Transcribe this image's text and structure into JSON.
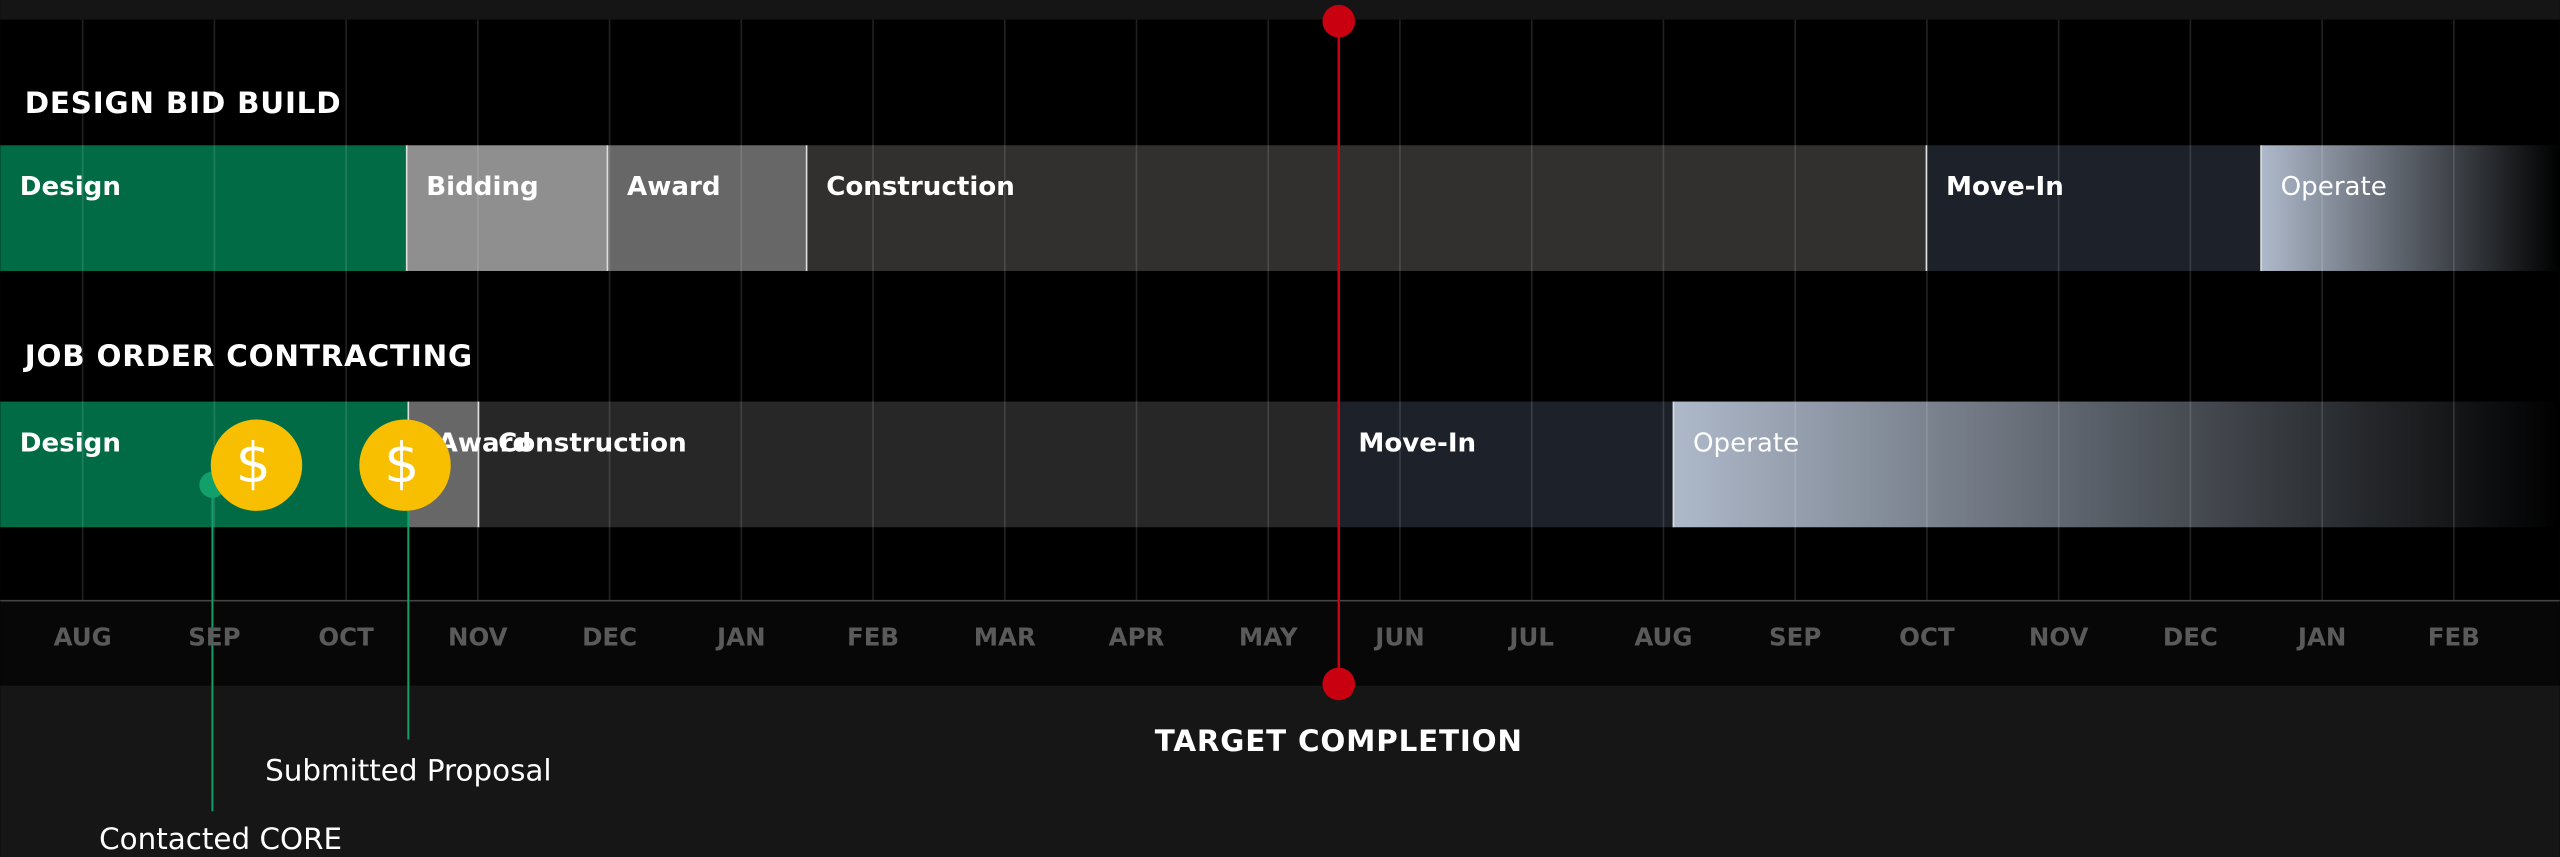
{
  "sections": [
    {
      "title": "DESIGN BID BUILD",
      "phases": [
        "Design",
        "Bidding",
        "Award",
        "Construction",
        "Move-In",
        "Operate"
      ]
    },
    {
      "title": "JOB ORDER CONTRACTING",
      "phases": [
        "Design",
        "Award",
        "Construction",
        "Move-In",
        "Operate"
      ]
    }
  ],
  "months": [
    "AUG",
    "SEP",
    "OCT",
    "NOV",
    "DEC",
    "JAN",
    "FEB",
    "MAR",
    "APR",
    "MAY",
    "JUN",
    "JUL",
    "AUG",
    "SEP",
    "OCT",
    "NOV",
    "DEC",
    "JAN",
    "FEB"
  ],
  "target": "TARGET COMPLETION",
  "milestones": [
    "Submitted Proposal",
    "Contacted CORE"
  ]
}
